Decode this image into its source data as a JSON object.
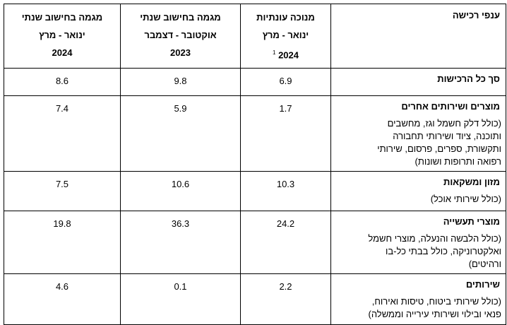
{
  "table": {
    "header": {
      "category": "ענפי רכישה",
      "columns": [
        {
          "lines": [
            "מנוכה עונתיות",
            "ינואר - מרץ"
          ],
          "year": 2024,
          "note": 1
        },
        {
          "lines": [
            "מגמה בחישוב שנתי",
            "אוקטובר - דצמבר"
          ],
          "year": 2023
        },
        {
          "lines": [
            "מגמה בחישוב שנתי",
            "ינואר - מרץ"
          ],
          "year": 2024
        }
      ]
    },
    "rows": [
      {
        "title": "סך כל הרכישות",
        "values": [
          6.9,
          9.8,
          8.6
        ]
      },
      {
        "title": "מוצרים ושירותים אחרים",
        "description": "(כולל דלק חשמל וגז, מחשבים ותוכנה, ציוד ושירותי תחבורה ותקשורת, ספרים, פרסום, שירותי רפואה ותרופות ושונות)",
        "values": [
          1.7,
          5.9,
          7.4
        ]
      },
      {
        "title": "מזון ומשקאות",
        "description": "(כולל שירותי אוכל)",
        "values": [
          10.3,
          10.6,
          7.5
        ]
      },
      {
        "title": "מוצרי תעשייה",
        "description": "(כולל הלבשה והנעלה, מוצרי חשמל ואלקטרוניקה, כולל בבתי כל-בו ורהיטים)",
        "values": [
          24.2,
          36.3,
          19.8
        ]
      },
      {
        "title": "שירותים",
        "description": "(כולל שירותי ביטוח, טיסות ואירוח, פנאי ובילוי ושירותי עירייה וממשלה)",
        "values": [
          2.2,
          0.1,
          4.6
        ]
      }
    ]
  }
}
